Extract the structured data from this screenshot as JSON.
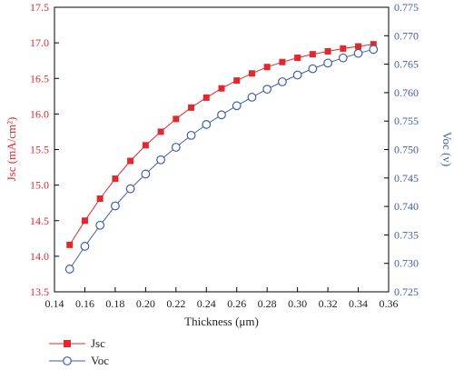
{
  "chart_data": {
    "type": "line",
    "xlabel": "Thickness (μm)",
    "ylabel_left": "Jsc (mA/cm²)",
    "ylabel_right": "Voc (v)",
    "xlim": [
      0.14,
      0.36
    ],
    "ylim_left": [
      13.5,
      17.5
    ],
    "ylim_right": [
      0.725,
      0.775
    ],
    "xticks": [
      "0.14",
      "0.16",
      "0.18",
      "0.20",
      "0.22",
      "0.24",
      "0.26",
      "0.28",
      "0.30",
      "0.32",
      "0.34",
      "0.36"
    ],
    "yticks_left": [
      "13.5",
      "14.0",
      "14.5",
      "15.0",
      "15.5",
      "16.0",
      "16.5",
      "17.0",
      "17.5"
    ],
    "yticks_right": [
      "0.725",
      "0.730",
      "0.735",
      "0.740",
      "0.745",
      "0.750",
      "0.755",
      "0.760",
      "0.765",
      "0.770",
      "0.775"
    ],
    "x": [
      0.15,
      0.16,
      0.17,
      0.18,
      0.19,
      0.2,
      0.21,
      0.22,
      0.23,
      0.24,
      0.25,
      0.26,
      0.27,
      0.28,
      0.29,
      0.3,
      0.31,
      0.32,
      0.33,
      0.34,
      0.35
    ],
    "series": [
      {
        "name": "Jsc",
        "axis": "left",
        "color": "#e0282e",
        "marker": "filled-square",
        "values": [
          14.16,
          14.5,
          14.81,
          15.09,
          15.34,
          15.56,
          15.75,
          15.93,
          16.09,
          16.23,
          16.36,
          16.47,
          16.57,
          16.66,
          16.73,
          16.79,
          16.84,
          16.88,
          16.92,
          16.95,
          16.98
        ]
      },
      {
        "name": "Voc",
        "axis": "right",
        "color": "#3f5fa6",
        "marker": "open-circle",
        "values": [
          0.729,
          0.733,
          0.7367,
          0.7401,
          0.7431,
          0.7457,
          0.7482,
          0.7504,
          0.7525,
          0.7544,
          0.7561,
          0.7577,
          0.7592,
          0.7606,
          0.7619,
          0.7631,
          0.7642,
          0.7652,
          0.7661,
          0.7669,
          0.7676
        ]
      }
    ],
    "legend": {
      "placement": "bottom-left",
      "entries": [
        "Jsc",
        "Voc"
      ]
    },
    "grid": false
  }
}
